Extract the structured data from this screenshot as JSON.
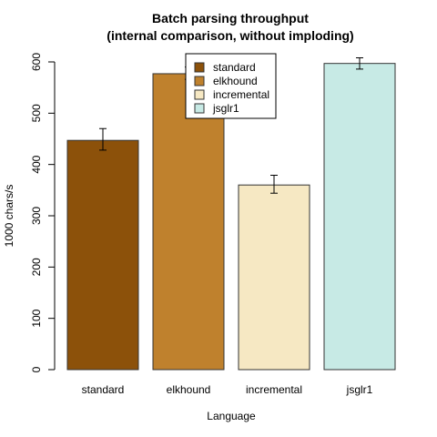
{
  "chart_data": {
    "type": "bar",
    "title": "Batch parsing throughput",
    "subtitle": "(internal comparison, without imploding)",
    "xlabel": "Language",
    "ylabel": "1000 chars/s",
    "ylim": [
      0,
      600
    ],
    "yticks": [
      "0",
      "100",
      "200",
      "300",
      "400",
      "500",
      "600"
    ],
    "categories": [
      "standard",
      "elkhound",
      "incremental",
      "jsglr1"
    ],
    "values": [
      447,
      577,
      360,
      597
    ],
    "errors": [
      [
        428,
        470
      ],
      [
        566,
        590
      ],
      [
        344,
        379
      ],
      [
        586,
        608
      ]
    ],
    "colors": [
      "#8c510a",
      "#bf812d",
      "#f6e8c3",
      "#c7eae5"
    ],
    "legend": {
      "position": "top-center",
      "entries": [
        "standard",
        "elkhound",
        "incremental",
        "jsglr1"
      ]
    },
    "grid": false
  }
}
